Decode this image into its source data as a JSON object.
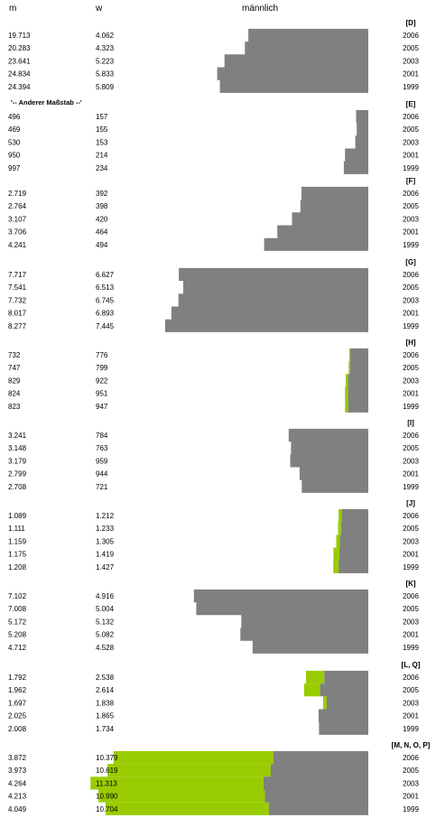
{
  "header": {
    "col_m": "m",
    "col_w": "w",
    "title": "männlich"
  },
  "note": "'-- Anderer Maßstab --'",
  "colors": {
    "male": "#808080",
    "excess": "#99cc00",
    "bg": "#ffffff"
  },
  "chart_data": {
    "type": "bar",
    "title": "männlich",
    "orientation": "horizontal",
    "scale_note": "'-- Anderer Maßstab --'",
    "series": [
      {
        "name": "m"
      },
      {
        "name": "w"
      }
    ],
    "groups": [
      {
        "label": "[D]",
        "rows": [
          {
            "year": "2006",
            "m_label": "19.713",
            "w_label": "4.062",
            "m": 19713,
            "w": 4062
          },
          {
            "year": "2005",
            "m_label": "20.283",
            "w_label": "4.323",
            "m": 20283,
            "w": 4323
          },
          {
            "year": "2003",
            "m_label": "23.641",
            "w_label": "5.223",
            "m": 23641,
            "w": 5223
          },
          {
            "year": "2001",
            "m_label": "24.834",
            "w_label": "5.833",
            "m": 24834,
            "w": 5833
          },
          {
            "year": "1999",
            "m_label": "24.394",
            "w_label": "5.809",
            "m": 24394,
            "w": 5809
          }
        ]
      },
      {
        "label": "[E]",
        "rows": [
          {
            "year": "2006",
            "m_label": "496",
            "w_label": "157",
            "m": 496,
            "w": 157
          },
          {
            "year": "2005",
            "m_label": "469",
            "w_label": "155",
            "m": 469,
            "w": 155
          },
          {
            "year": "2003",
            "m_label": "530",
            "w_label": "153",
            "m": 530,
            "w": 153
          },
          {
            "year": "2001",
            "m_label": "950",
            "w_label": "214",
            "m": 950,
            "w": 214
          },
          {
            "year": "1999",
            "m_label": "997",
            "w_label": "234",
            "m": 997,
            "w": 234
          }
        ]
      },
      {
        "label": "[F]",
        "rows": [
          {
            "year": "2006",
            "m_label": "2.719",
            "w_label": "392",
            "m": 2719,
            "w": 392
          },
          {
            "year": "2005",
            "m_label": "2.764",
            "w_label": "398",
            "m": 2764,
            "w": 398
          },
          {
            "year": "2003",
            "m_label": "3.107",
            "w_label": "420",
            "m": 3107,
            "w": 420
          },
          {
            "year": "2001",
            "m_label": "3.706",
            "w_label": "464",
            "m": 3706,
            "w": 464
          },
          {
            "year": "1999",
            "m_label": "4.241",
            "w_label": "494",
            "m": 4241,
            "w": 494
          }
        ]
      },
      {
        "label": "[G]",
        "rows": [
          {
            "year": "2006",
            "m_label": "7.717",
            "w_label": "6.627",
            "m": 7717,
            "w": 6627
          },
          {
            "year": "2005",
            "m_label": "7.541",
            "w_label": "6.513",
            "m": 7541,
            "w": 6513
          },
          {
            "year": "2003",
            "m_label": "7.732",
            "w_label": "6.745",
            "m": 7732,
            "w": 6745
          },
          {
            "year": "2001",
            "m_label": "8.017",
            "w_label": "6.893",
            "m": 8017,
            "w": 6893
          },
          {
            "year": "1999",
            "m_label": "8.277",
            "w_label": "7.445",
            "m": 8277,
            "w": 7445
          }
        ]
      },
      {
        "label": "[H]",
        "rows": [
          {
            "year": "2006",
            "m_label": "732",
            "w_label": "776",
            "m": 732,
            "w": 776
          },
          {
            "year": "2005",
            "m_label": "747",
            "w_label": "799",
            "m": 747,
            "w": 799
          },
          {
            "year": "2003",
            "m_label": "829",
            "w_label": "922",
            "m": 829,
            "w": 922
          },
          {
            "year": "2001",
            "m_label": "824",
            "w_label": "951",
            "m": 824,
            "w": 951
          },
          {
            "year": "1999",
            "m_label": "823",
            "w_label": "947",
            "m": 823,
            "w": 947
          }
        ]
      },
      {
        "label": "[I]",
        "rows": [
          {
            "year": "2006",
            "m_label": "3.241",
            "w_label": "784",
            "m": 3241,
            "w": 784
          },
          {
            "year": "2005",
            "m_label": "3.148",
            "w_label": "763",
            "m": 3148,
            "w": 763
          },
          {
            "year": "2003",
            "m_label": "3.179",
            "w_label": "959",
            "m": 3179,
            "w": 959
          },
          {
            "year": "2001",
            "m_label": "2.799",
            "w_label": "944",
            "m": 2799,
            "w": 944
          },
          {
            "year": "1999",
            "m_label": "2.708",
            "w_label": "721",
            "m": 2708,
            "w": 721
          }
        ]
      },
      {
        "label": "[J]",
        "rows": [
          {
            "year": "2006",
            "m_label": "1.089",
            "w_label": "1.212",
            "m": 1089,
            "w": 1212
          },
          {
            "year": "2005",
            "m_label": "1.111",
            "w_label": "1.233",
            "m": 1111,
            "w": 1233
          },
          {
            "year": "2003",
            "m_label": "1.159",
            "w_label": "1.305",
            "m": 1159,
            "w": 1305
          },
          {
            "year": "2001",
            "m_label": "1.175",
            "w_label": "1.419",
            "m": 1175,
            "w": 1419
          },
          {
            "year": "1999",
            "m_label": "1.208",
            "w_label": "1.427",
            "m": 1208,
            "w": 1427
          }
        ]
      },
      {
        "label": "[K]",
        "rows": [
          {
            "year": "2006",
            "m_label": "7.102",
            "w_label": "4.916",
            "m": 7102,
            "w": 4916
          },
          {
            "year": "2005",
            "m_label": "7.008",
            "w_label": "5.004",
            "m": 7008,
            "w": 5004
          },
          {
            "year": "2003",
            "m_label": "5.172",
            "w_label": "5.132",
            "m": 5172,
            "w": 5132
          },
          {
            "year": "2001",
            "m_label": "5.208",
            "w_label": "5.082",
            "m": 5208,
            "w": 5082
          },
          {
            "year": "1999",
            "m_label": "4.712",
            "w_label": "4.528",
            "m": 4712,
            "w": 4528
          }
        ]
      },
      {
        "label": "[L, Q]",
        "rows": [
          {
            "year": "2006",
            "m_label": "1.792",
            "w_label": "2.538",
            "m": 1792,
            "w": 2538
          },
          {
            "year": "2005",
            "m_label": "1.962",
            "w_label": "2.614",
            "m": 1962,
            "w": 2614
          },
          {
            "year": "2003",
            "m_label": "1.697",
            "w_label": "1.838",
            "m": 1697,
            "w": 1838
          },
          {
            "year": "2001",
            "m_label": "2.025",
            "w_label": "1.865",
            "m": 2025,
            "w": 1865
          },
          {
            "year": "1999",
            "m_label": "2.008",
            "w_label": "1.734",
            "m": 2008,
            "w": 1734
          }
        ]
      },
      {
        "label": "[M, N, O, P]",
        "rows": [
          {
            "year": "2006",
            "m_label": "3.872",
            "w_label": "10.379",
            "m": 3872,
            "w": 10379
          },
          {
            "year": "2005",
            "m_label": "3.973",
            "w_label": "10.619",
            "m": 3973,
            "w": 10619
          },
          {
            "year": "2003",
            "m_label": "4.264",
            "w_label": "11.313",
            "m": 4264,
            "w": 11313
          },
          {
            "year": "2001",
            "m_label": "4.213",
            "w_label": "10.990",
            "m": 4213,
            "w": 10990
          },
          {
            "year": "1999",
            "m_label": "4.049",
            "w_label": "10.704",
            "m": 4049,
            "w": 10704
          }
        ]
      }
    ]
  }
}
